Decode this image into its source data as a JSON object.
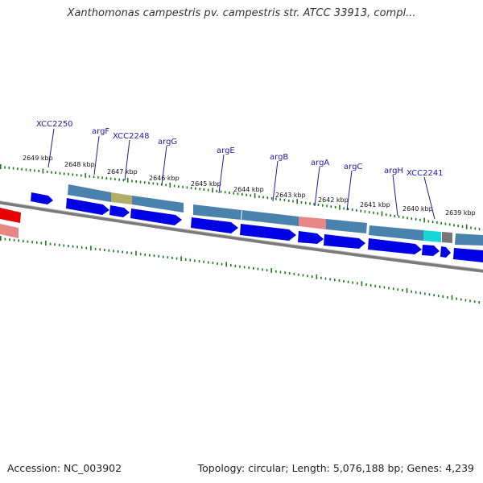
{
  "title": "Xanthomonas campestris pv. campestris str. ATCC 33913, compl...",
  "footer": {
    "accession": "Accession: NC_003902",
    "summary": "Topology: circular; Length: 5,076,188 bp; Genes: 4,239"
  },
  "colors": {
    "forward_cds": "#0000e6",
    "reverse_cds": "#e80000",
    "feature_band": "#4a82ae",
    "feature_olive": "#b3ad6a",
    "feature_salmon": "#e88585",
    "feature_cyan": "#19d6d6",
    "feature_gray": "#777777",
    "backbone": "#7a7a7a",
    "ticks": "#1a7a1a",
    "gene_label": "#1a1aa8"
  },
  "kbp_labels": [
    "2649 kbp",
    "2648 kbp",
    "2647 kbp",
    "2646 kbp",
    "2645 kbp",
    "2644 kbp",
    "2643 kbp",
    "2642 kbp",
    "2641 kbp",
    "2640 kbp",
    "2639 kbp"
  ],
  "gene_labels": [
    "XCC2250",
    "argF",
    "XCC2248",
    "argG",
    "argE",
    "argB",
    "argA",
    "argC",
    "argH",
    "XCC2241"
  ]
}
